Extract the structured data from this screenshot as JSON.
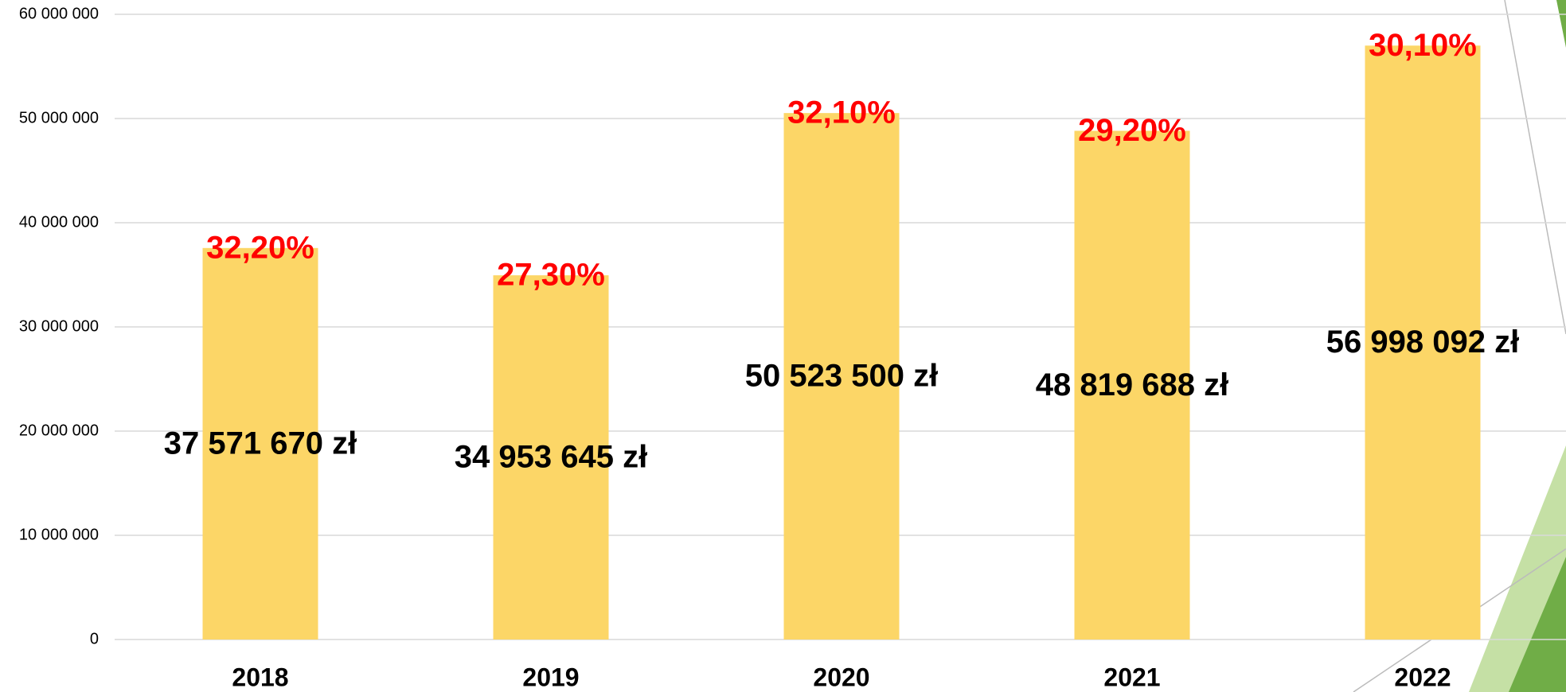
{
  "chart_data": {
    "type": "bar",
    "categories": [
      "2018",
      "2019",
      "2020",
      "2021",
      "2022"
    ],
    "values": [
      37571670,
      34953645,
      50523500,
      48819688,
      56998092
    ],
    "value_labels": [
      "37 571 670 zł",
      "34 953 645 zł",
      "50 523 500 zł",
      "48 819 688 zł",
      "56 998 092 zł"
    ],
    "annotations": [
      "32,20%",
      "27,30%",
      "32,10%",
      "29,20%",
      "30,10%"
    ],
    "color": "#fcd667",
    "ylim": [
      0,
      60000000
    ],
    "yticks": [
      {
        "value": 0,
        "label": "0"
      },
      {
        "value": 10000000,
        "label": "10 000 000"
      },
      {
        "value": 20000000,
        "label": "20 000 000"
      },
      {
        "value": 30000000,
        "label": "30 000 000"
      },
      {
        "value": 40000000,
        "label": "40 000 000"
      },
      {
        "value": 50000000,
        "label": "50 000 000"
      },
      {
        "value": 60000000,
        "label": "60 000 000"
      }
    ],
    "grid": true
  }
}
